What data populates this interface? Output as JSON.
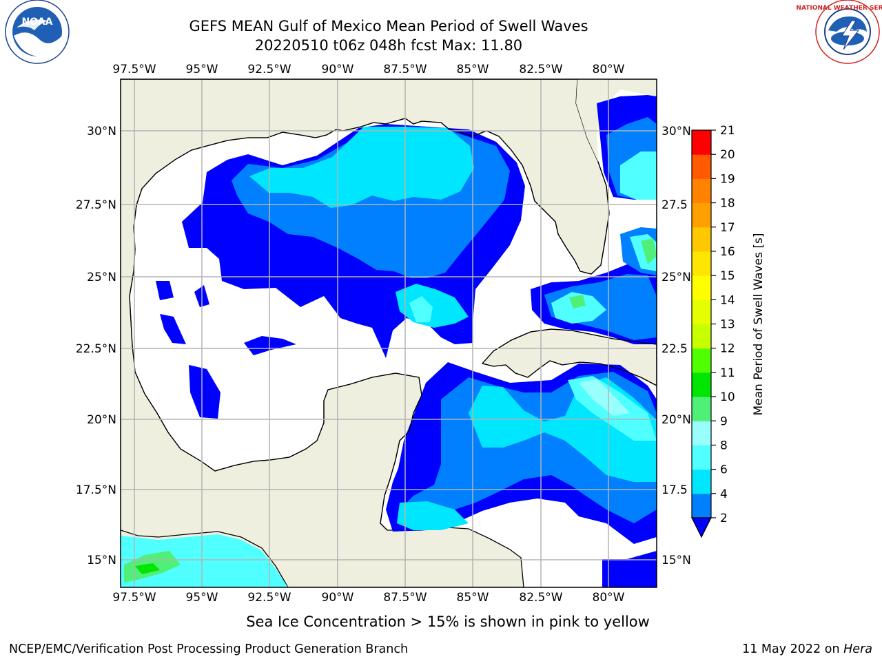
{
  "title": {
    "line1": "GEFS MEAN Gulf of Mexico Mean Period of Swell Waves",
    "line2": "20220510 t06z 048h fcst   Max: 11.80"
  },
  "subtitle": "Sea Ice Concentration > 15% is shown in pink to yellow",
  "footer": {
    "left": "NCEP/EMC/Verification Post Processing Product Generation Branch",
    "date": "11 May 2022 on",
    "host": "Hera"
  },
  "logos": {
    "noaa": {
      "text": "NOAA",
      "ring": "NATIONAL OCEANIC AND ATMOSPHERIC ADMINISTRATION · U.S. DEPARTMENT OF COMMERCE"
    },
    "nws": {
      "ring": "NATIONAL WEATHER SERVICE"
    }
  },
  "map": {
    "lon_labels": [
      "97.5°W",
      "95°W",
      "92.5°W",
      "90°W",
      "87.5°W",
      "85°W",
      "82.5°W",
      "80°W"
    ],
    "lat_labels_left": [
      "30°N",
      "27.5°N",
      "25°N",
      "22.5°N",
      "20°N",
      "17.5°N",
      "15°N"
    ],
    "lat_labels_right": [
      "30°N",
      "27.5",
      "25°N",
      "22.5",
      "20°N",
      "17.5",
      "15°N"
    ],
    "colors": {
      "land": "#efefdf",
      "ocean": "#ffffff",
      "grid": "#b3b3b3",
      "coast": "#000000"
    }
  },
  "colorbar": {
    "label": "Mean Period of Swell Waves [s]",
    "ticks": [
      "2",
      "4",
      "6",
      "8",
      "9",
      "10",
      "11",
      "12",
      "13",
      "14",
      "15",
      "16",
      "17",
      "18",
      "19",
      "20",
      "21"
    ],
    "colors": [
      "#0080ff",
      "#00e6ff",
      "#50ffff",
      "#98fffc",
      "#50f078",
      "#00e600",
      "#50ff00",
      "#c8ff00",
      "#e6ff00",
      "#ffff00",
      "#ffe600",
      "#ffc800",
      "#ffa000",
      "#ff8200",
      "#ff5a00",
      "#ff2800",
      "#ff0000"
    ],
    "under_color": "#0000ff"
  }
}
